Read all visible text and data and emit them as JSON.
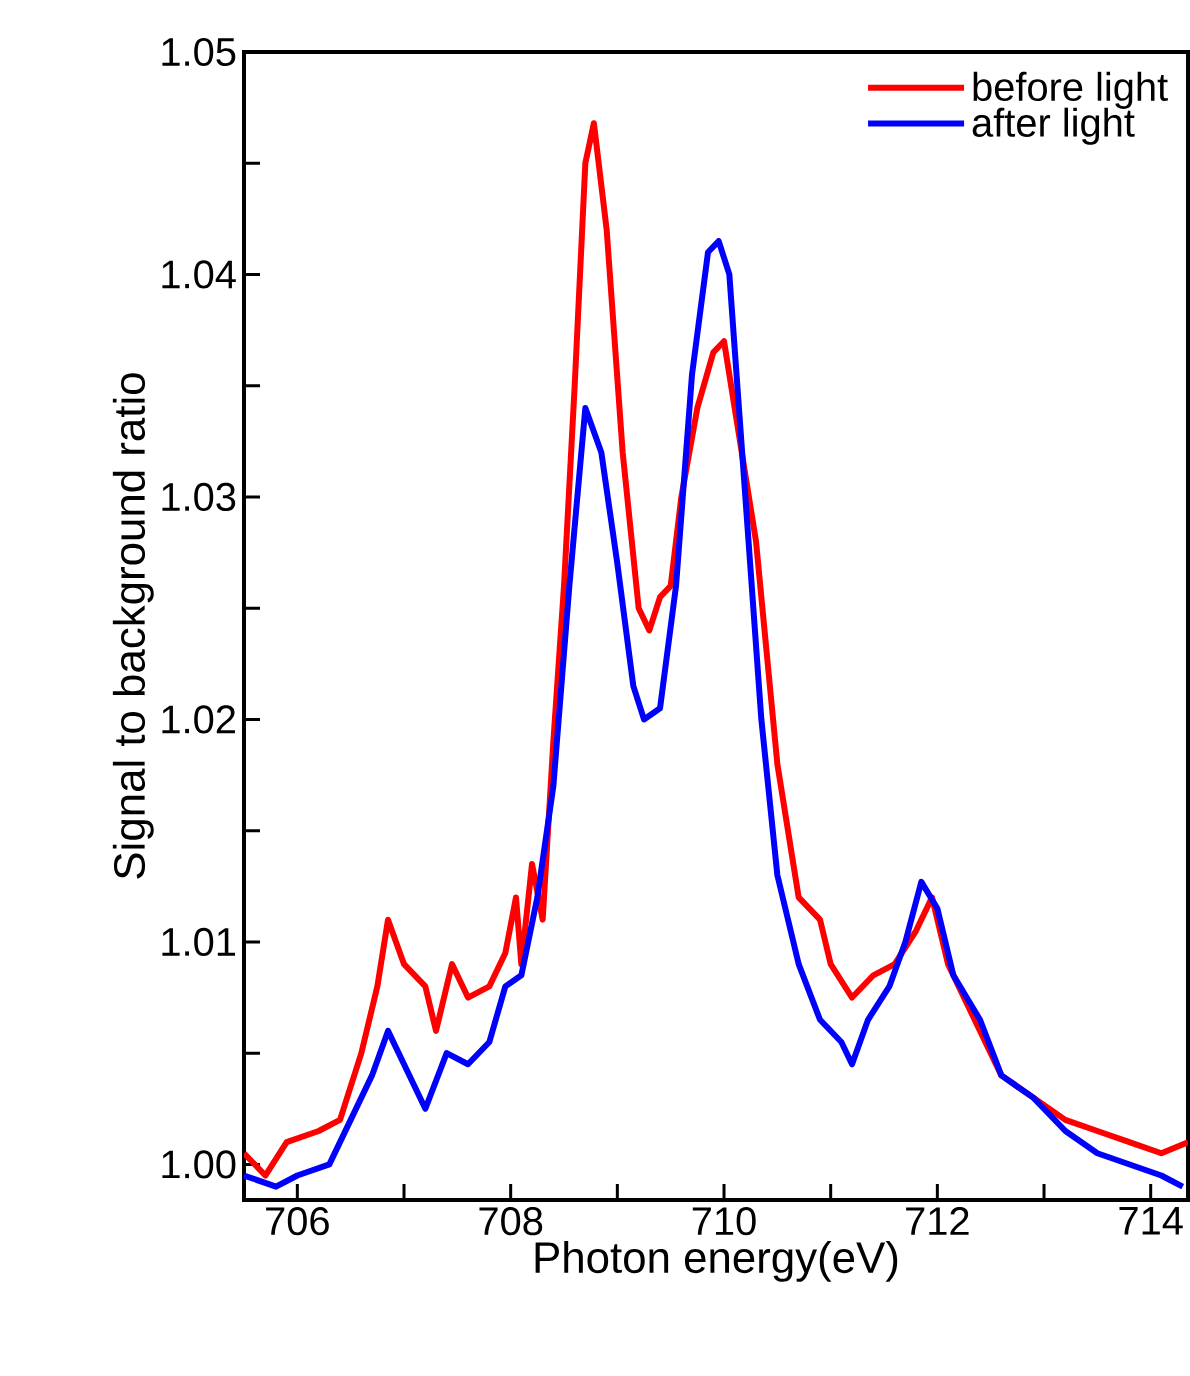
{
  "chart_data": {
    "type": "line",
    "xlabel": "Photon energy(eV)",
    "ylabel": "Signal to background ratio",
    "xlim": [
      705.5,
      714.35
    ],
    "ylim": [
      0.9984,
      1.05
    ],
    "xticks": [
      706,
      {
        "value": 707,
        "label": null
      },
      708,
      {
        "value": 709,
        "label": null
      },
      710,
      {
        "value": 711,
        "label": null
      },
      712,
      {
        "value": 713,
        "label": null
      },
      714
    ],
    "yticks": [
      {
        "value": 1.0,
        "label": "1.00"
      },
      {
        "value": 1.005,
        "label": null
      },
      1.01,
      {
        "value": 1.015,
        "label": null
      },
      1.02,
      {
        "value": 1.025,
        "label": null
      },
      1.03,
      {
        "value": 1.035,
        "label": null
      },
      1.04,
      {
        "value": 1.045,
        "label": null
      },
      1.05
    ],
    "grid": false,
    "legend": "top right",
    "marker": "none",
    "line_style": "solid",
    "series": [
      {
        "name": "before light",
        "color": "#ff0000",
        "x": [
          705.5,
          705.7,
          705.9,
          706.2,
          706.4,
          706.6,
          706.75,
          706.85,
          707.0,
          707.2,
          707.3,
          707.45,
          707.6,
          707.8,
          707.95,
          708.05,
          708.1,
          708.2,
          708.3,
          708.4,
          708.5,
          708.6,
          708.7,
          708.78,
          708.9,
          709.05,
          709.2,
          709.3,
          709.4,
          709.5,
          709.6,
          709.75,
          709.9,
          710.0,
          710.1,
          710.3,
          710.5,
          710.7,
          710.9,
          711.0,
          711.2,
          711.4,
          711.6,
          711.8,
          711.95,
          712.1,
          712.3,
          712.6,
          712.9,
          713.2,
          713.5,
          713.8,
          714.1,
          714.35
        ],
        "values": [
          1.0005,
          0.9995,
          1.001,
          1.0015,
          1.002,
          1.005,
          1.008,
          1.011,
          1.009,
          1.008,
          1.006,
          1.009,
          1.0075,
          1.008,
          1.0095,
          1.012,
          1.009,
          1.0135,
          1.011,
          1.019,
          1.026,
          1.035,
          1.045,
          1.0468,
          1.042,
          1.032,
          1.025,
          1.024,
          1.0255,
          1.026,
          1.03,
          1.034,
          1.0365,
          1.037,
          1.034,
          1.028,
          1.018,
          1.012,
          1.011,
          1.009,
          1.0075,
          1.0085,
          1.009,
          1.0105,
          1.012,
          1.009,
          1.007,
          1.004,
          1.003,
          1.002,
          1.0015,
          1.001,
          1.0005,
          1.001
        ]
      },
      {
        "name": "after light",
        "color": "#0000ff",
        "x": [
          705.5,
          705.8,
          706.0,
          706.3,
          706.5,
          706.7,
          706.85,
          707.0,
          707.2,
          707.4,
          707.6,
          707.8,
          707.95,
          708.1,
          708.25,
          708.4,
          708.55,
          708.7,
          708.85,
          709.0,
          709.15,
          709.25,
          709.4,
          709.55,
          709.7,
          709.85,
          709.95,
          710.05,
          710.2,
          710.35,
          710.5,
          710.7,
          710.9,
          711.1,
          711.2,
          711.35,
          711.55,
          711.7,
          711.85,
          712.0,
          712.15,
          712.4,
          712.6,
          712.9,
          713.2,
          713.5,
          713.8,
          714.1,
          714.3
        ],
        "values": [
          0.9995,
          0.999,
          0.9995,
          1.0,
          1.002,
          1.004,
          1.006,
          1.0045,
          1.0025,
          1.005,
          1.0045,
          1.0055,
          1.008,
          1.0085,
          1.012,
          1.017,
          1.026,
          1.034,
          1.032,
          1.027,
          1.0215,
          1.02,
          1.0205,
          1.026,
          1.0355,
          1.041,
          1.0415,
          1.04,
          1.03,
          1.02,
          1.013,
          1.009,
          1.0065,
          1.0055,
          1.0045,
          1.0065,
          1.008,
          1.01,
          1.0127,
          1.0115,
          1.0085,
          1.0065,
          1.004,
          1.003,
          1.0015,
          1.0005,
          1.0,
          0.9995,
          0.999
        ]
      }
    ]
  }
}
